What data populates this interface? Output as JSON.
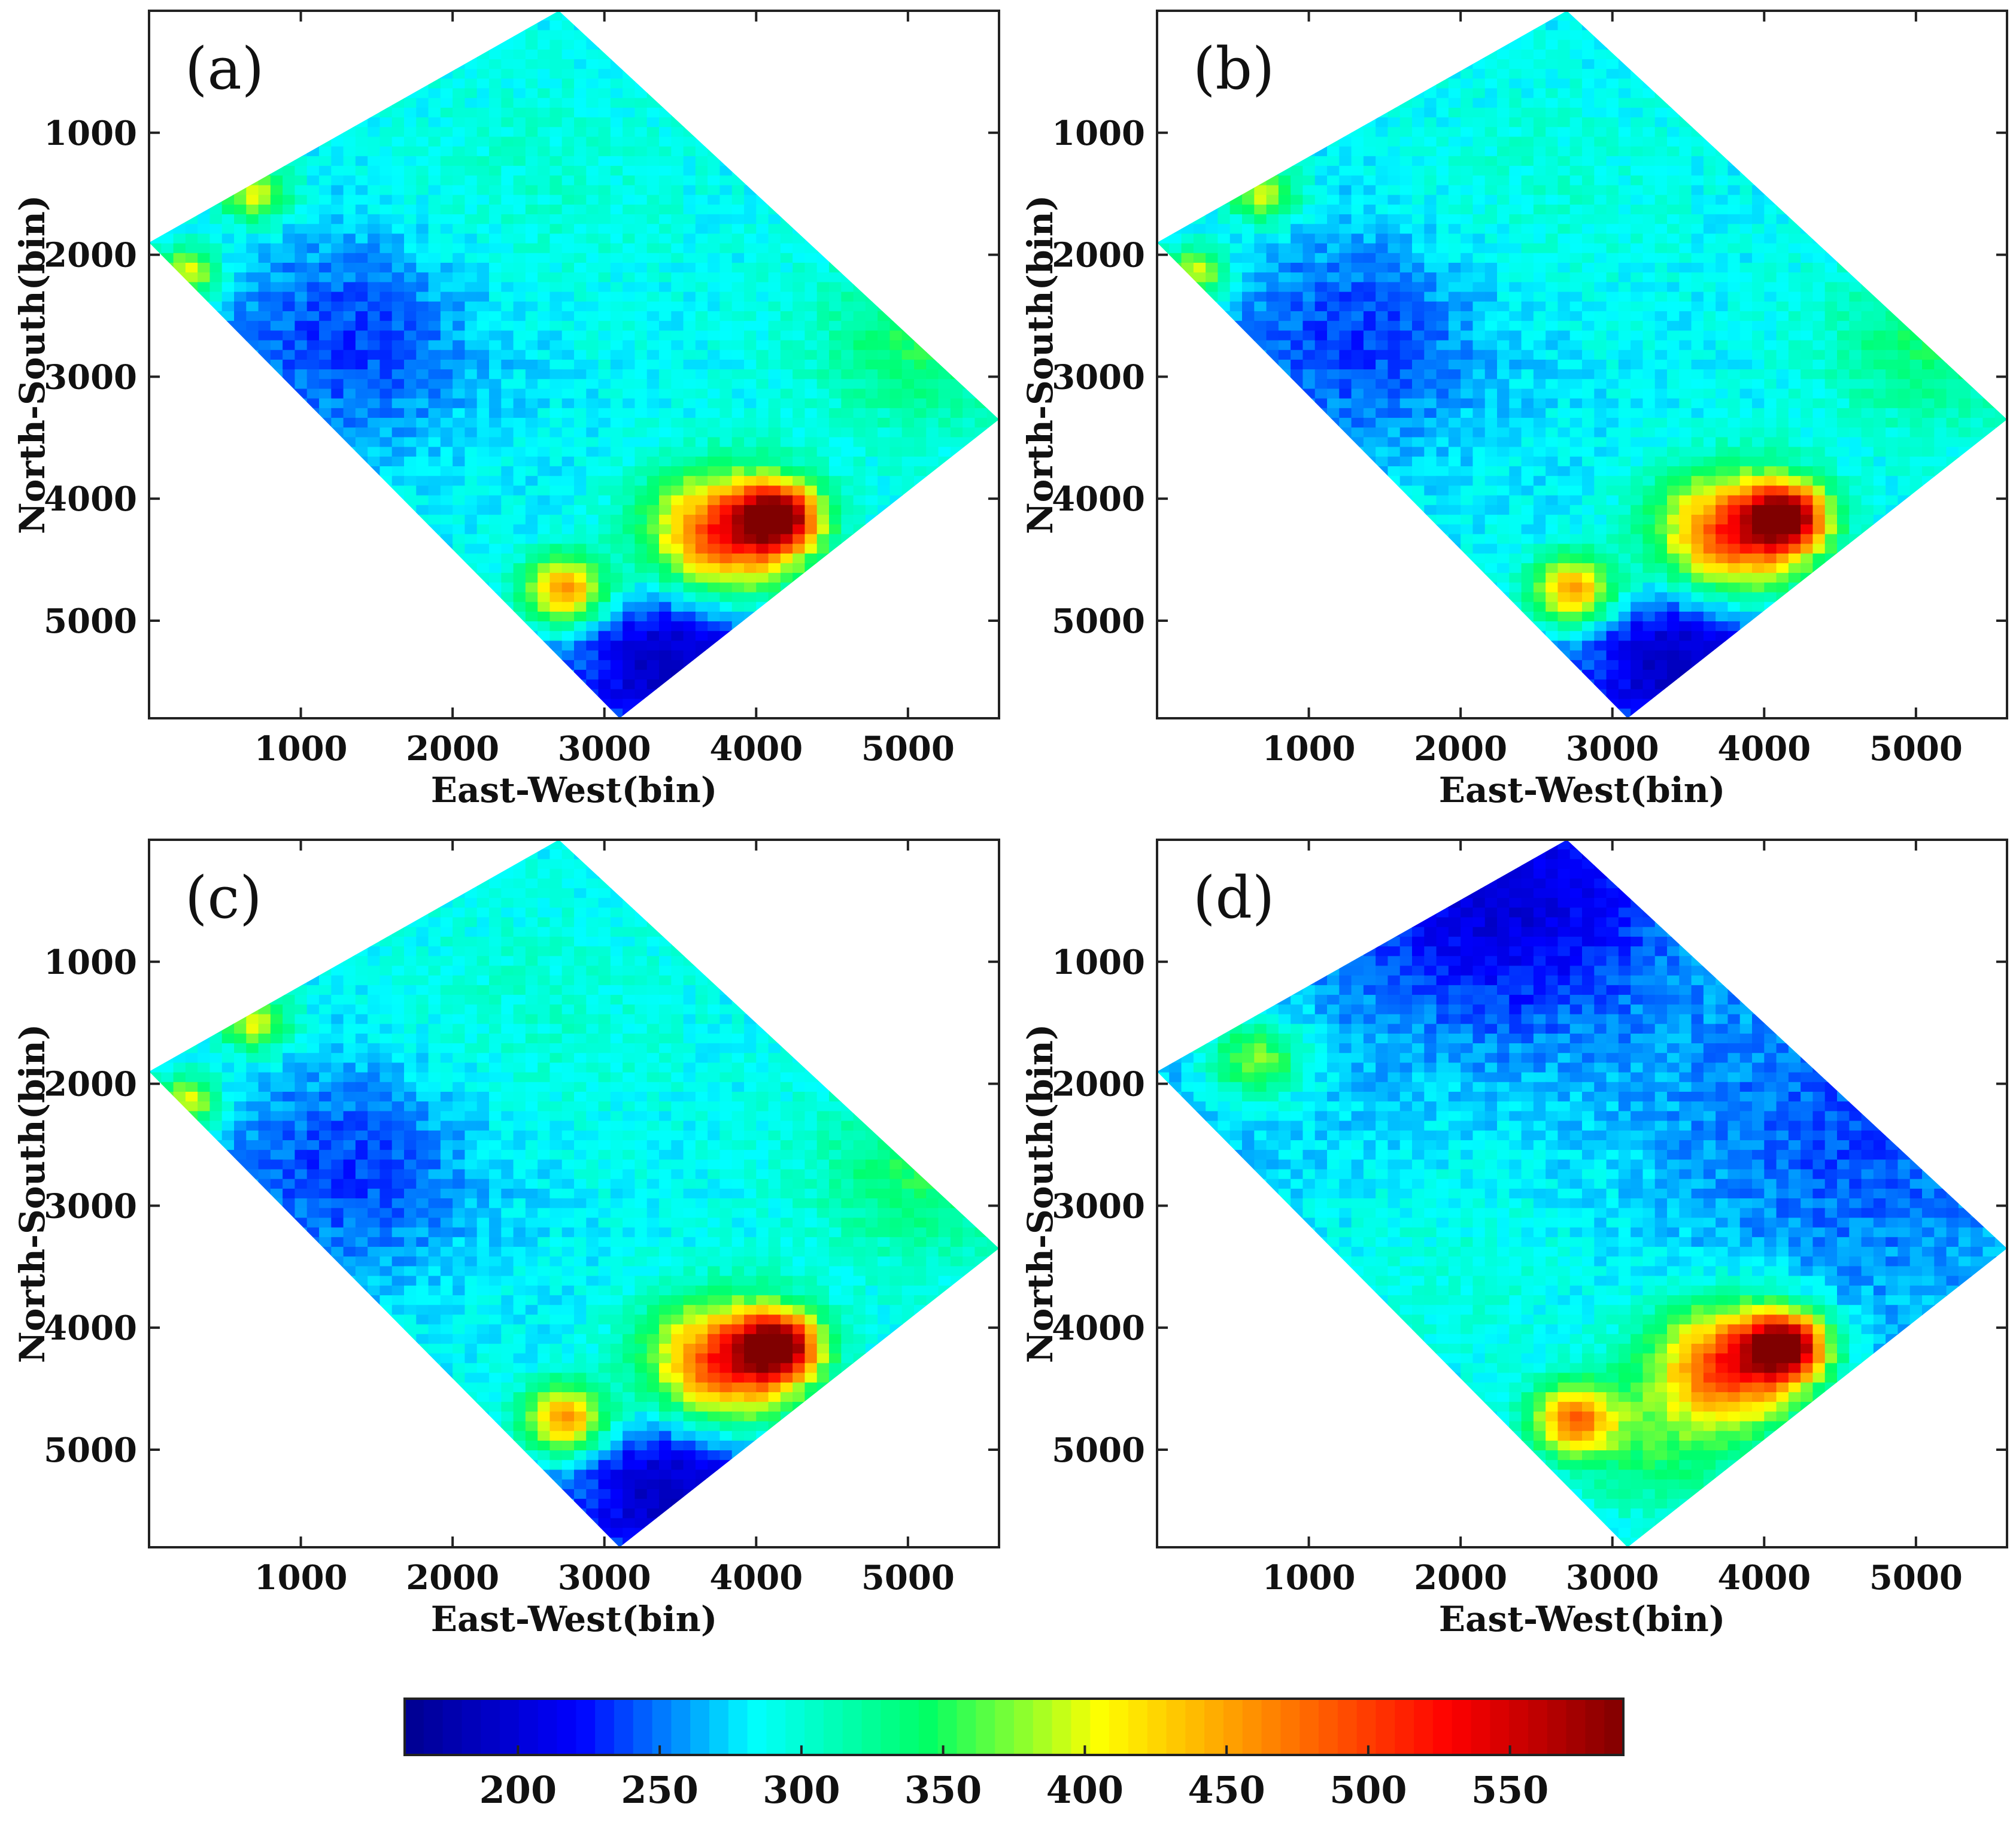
{
  "chart_data": [
    {
      "type": "heatmap",
      "panel_label": "(a)",
      "xlabel": "East-West(bin)",
      "ylabel": "North-South(bin)",
      "xlim": [
        0,
        5600
      ],
      "ylim": [
        0,
        5800
      ],
      "y_reversed": true,
      "xticks": [
        "1000",
        "2000",
        "3000",
        "4000",
        "5000"
      ],
      "yticks": [
        "1000",
        "2000",
        "3000",
        "4000",
        "5000"
      ],
      "survey_outline": [
        [
          0,
          1900
        ],
        [
          2700,
          0
        ],
        [
          5600,
          3350
        ],
        [
          3100,
          5800
        ]
      ],
      "field": {
        "base": 285,
        "features": [
          {
            "x": 700,
            "y": 1500,
            "value": 405,
            "sigma": 160
          },
          {
            "x": 250,
            "y": 2150,
            "value": 410,
            "sigma": 150
          },
          {
            "x": 3800,
            "y": 4300,
            "value": 520,
            "sigma": 350
          },
          {
            "x": 4150,
            "y": 4150,
            "value": 545,
            "sigma": 180
          },
          {
            "x": 2750,
            "y": 4750,
            "value": 465,
            "sigma": 200
          },
          {
            "x": 3450,
            "y": 5350,
            "value": 185,
            "sigma": 500
          },
          {
            "x": 1300,
            "y": 2700,
            "value": 235,
            "sigma": 650
          },
          {
            "x": 5100,
            "y": 2700,
            "value": 345,
            "sigma": 500
          },
          {
            "x": 2500,
            "y": 1500,
            "value": 300,
            "sigma": 700
          }
        ]
      }
    },
    {
      "type": "heatmap",
      "panel_label": "(b)",
      "xlabel": "East-West(bin)",
      "ylabel": "North-South(bin)",
      "xlim": [
        0,
        5600
      ],
      "ylim": [
        0,
        5800
      ],
      "y_reversed": true,
      "xticks": [
        "1000",
        "2000",
        "3000",
        "4000",
        "5000"
      ],
      "yticks": [
        "1000",
        "2000",
        "3000",
        "4000",
        "5000"
      ],
      "survey_outline": [
        [
          0,
          1900
        ],
        [
          2700,
          0
        ],
        [
          5600,
          3350
        ],
        [
          3100,
          5800
        ]
      ],
      "field": {
        "base": 283,
        "features": [
          {
            "x": 700,
            "y": 1500,
            "value": 400,
            "sigma": 160
          },
          {
            "x": 250,
            "y": 2150,
            "value": 405,
            "sigma": 150
          },
          {
            "x": 3800,
            "y": 4300,
            "value": 515,
            "sigma": 350
          },
          {
            "x": 4150,
            "y": 4150,
            "value": 540,
            "sigma": 180
          },
          {
            "x": 2750,
            "y": 4750,
            "value": 460,
            "sigma": 200
          },
          {
            "x": 3450,
            "y": 5350,
            "value": 185,
            "sigma": 500
          },
          {
            "x": 1300,
            "y": 2700,
            "value": 235,
            "sigma": 650
          },
          {
            "x": 5100,
            "y": 2700,
            "value": 340,
            "sigma": 500
          },
          {
            "x": 2500,
            "y": 1500,
            "value": 298,
            "sigma": 700
          }
        ]
      }
    },
    {
      "type": "heatmap",
      "panel_label": "(c)",
      "xlabel": "East-West(bin)",
      "ylabel": "North-South(bin)",
      "xlim": [
        0,
        5600
      ],
      "ylim": [
        0,
        5800
      ],
      "y_reversed": true,
      "xticks": [
        "1000",
        "2000",
        "3000",
        "4000",
        "5000"
      ],
      "yticks": [
        "1000",
        "2000",
        "3000",
        "4000",
        "5000"
      ],
      "survey_outline": [
        [
          0,
          1900
        ],
        [
          2700,
          0
        ],
        [
          5600,
          3350
        ],
        [
          3100,
          5800
        ]
      ],
      "field": {
        "base": 285,
        "features": [
          {
            "x": 700,
            "y": 1500,
            "value": 405,
            "sigma": 160
          },
          {
            "x": 250,
            "y": 2150,
            "value": 410,
            "sigma": 150
          },
          {
            "x": 3800,
            "y": 4300,
            "value": 520,
            "sigma": 350
          },
          {
            "x": 4150,
            "y": 4150,
            "value": 545,
            "sigma": 180
          },
          {
            "x": 2750,
            "y": 4750,
            "value": 465,
            "sigma": 200
          },
          {
            "x": 3450,
            "y": 5350,
            "value": 185,
            "sigma": 500
          },
          {
            "x": 1300,
            "y": 2700,
            "value": 235,
            "sigma": 650
          },
          {
            "x": 5100,
            "y": 2700,
            "value": 345,
            "sigma": 500
          },
          {
            "x": 2500,
            "y": 1500,
            "value": 300,
            "sigma": 700
          }
        ]
      }
    },
    {
      "type": "heatmap",
      "panel_label": "(d)",
      "xlabel": "East-West(bin)",
      "ylabel": "North-South(bin)",
      "xlim": [
        0,
        5600
      ],
      "ylim": [
        0,
        5800
      ],
      "y_reversed": true,
      "xticks": [
        "1000",
        "2000",
        "3000",
        "4000",
        "5000"
      ],
      "yticks": [
        "1000",
        "2000",
        "3000",
        "4000",
        "5000"
      ],
      "survey_outline": [
        [
          0,
          1900
        ],
        [
          2700,
          0
        ],
        [
          5600,
          3350
        ],
        [
          3100,
          5800
        ]
      ],
      "field": {
        "base": 268,
        "features": [
          {
            "x": 2300,
            "y": 500,
            "value": 200,
            "sigma": 700
          },
          {
            "x": 650,
            "y": 1800,
            "value": 370,
            "sigma": 220
          },
          {
            "x": 3800,
            "y": 4300,
            "value": 500,
            "sigma": 350
          },
          {
            "x": 4150,
            "y": 4150,
            "value": 535,
            "sigma": 180
          },
          {
            "x": 2750,
            "y": 4750,
            "value": 440,
            "sigma": 200
          },
          {
            "x": 3300,
            "y": 5000,
            "value": 335,
            "sigma": 450
          },
          {
            "x": 2000,
            "y": 3600,
            "value": 295,
            "sigma": 900
          },
          {
            "x": 4600,
            "y": 2400,
            "value": 240,
            "sigma": 800
          }
        ]
      }
    }
  ],
  "colorbar": {
    "min": 160,
    "max": 590,
    "ticks": [
      "200",
      "250",
      "300",
      "350",
      "400",
      "450",
      "500",
      "550"
    ],
    "colormap": [
      "#00008f",
      "#0000ff",
      "#00ffff",
      "#00ff66",
      "#ffff00",
      "#ff8000",
      "#ff0000",
      "#800000"
    ]
  }
}
